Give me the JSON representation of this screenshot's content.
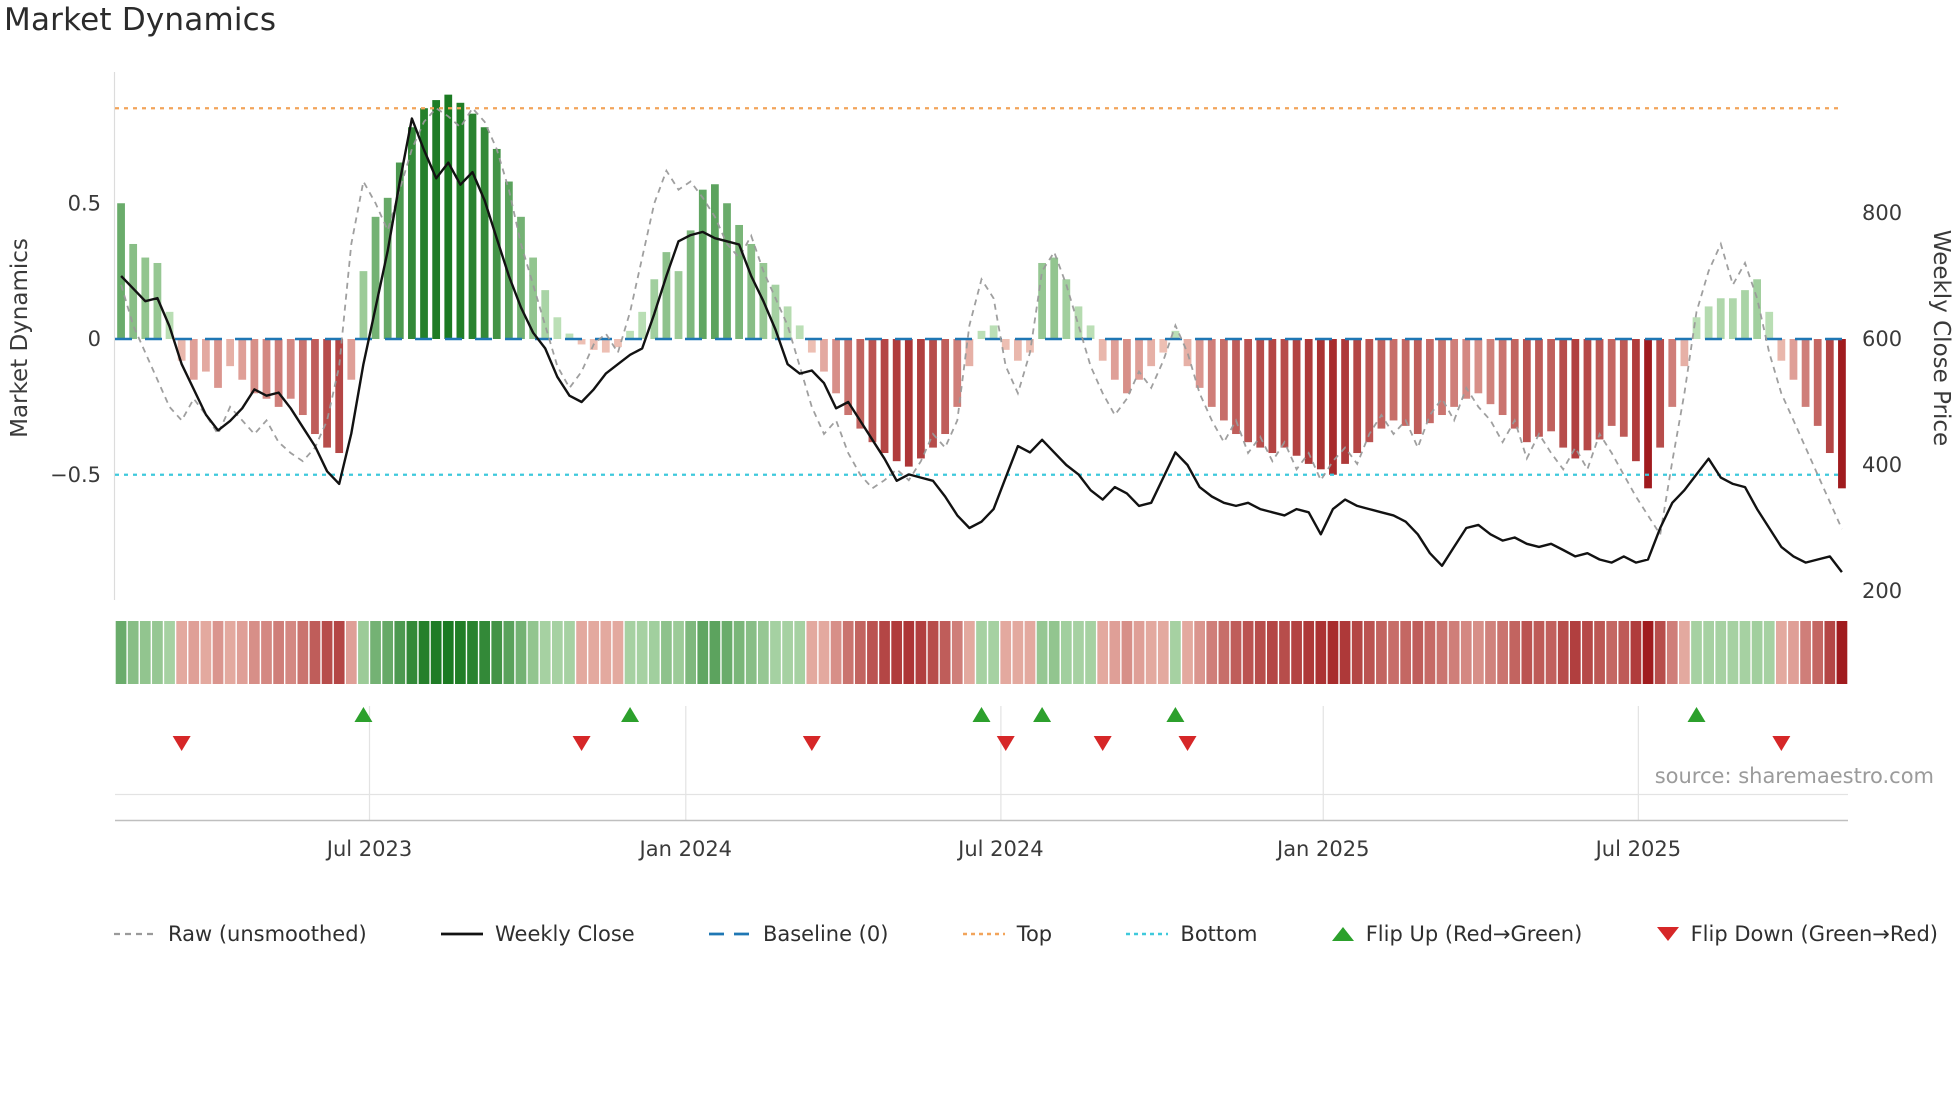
{
  "title": "Market Dynamics",
  "source": "source: sharemaestro.com",
  "axes": {
    "left_label": "Market Dynamics",
    "right_label": "Weekly Close Price",
    "left_ticks": [
      {
        "value": 0.5,
        "label": "0.5"
      },
      {
        "value": 0.0,
        "label": "0"
      },
      {
        "value": -0.5,
        "label": "−0.5"
      }
    ],
    "right_ticks": [
      {
        "value": 800,
        "label": "800"
      },
      {
        "value": 600,
        "label": "600"
      },
      {
        "value": 400,
        "label": "400"
      },
      {
        "value": 200,
        "label": "200"
      }
    ],
    "x_ticks": [
      {
        "week": 21.0,
        "label": "Jul 2023"
      },
      {
        "week": 47.1,
        "label": "Jan 2024"
      },
      {
        "week": 73.1,
        "label": "Jul 2024"
      },
      {
        "week": 99.7,
        "label": "Jan 2025"
      },
      {
        "week": 125.7,
        "label": "Jul 2025"
      }
    ]
  },
  "colors": {
    "raw": "#9a9a9a",
    "close": "#121212",
    "baseline": "#1f77b4",
    "top": "#f2a45a",
    "bottom": "#3fc9dc",
    "flip_up": "#2ca02c",
    "flip_down": "#d62728",
    "bar_pos_light": "#cdeac6",
    "bar_pos_dark": "#1b7a22",
    "bar_neg_light": "#f6d1c4",
    "bar_neg_dark": "#a01b1e",
    "grid": "#e3e3e3",
    "spine": "#bfbfbf",
    "tick_text": "#3a3a3a"
  },
  "legend": [
    {
      "label": "Raw (unsmoothed)",
      "style": "line-dash-small",
      "color_key": "raw"
    },
    {
      "label": "Weekly Close",
      "style": "line-solid",
      "color_key": "close"
    },
    {
      "label": "Baseline (0)",
      "style": "line-dash-long",
      "color_key": "baseline"
    },
    {
      "label": "Top",
      "style": "line-dot",
      "color_key": "top"
    },
    {
      "label": "Bottom",
      "style": "line-dot",
      "color_key": "bottom"
    },
    {
      "label": "Flip Up (Red→Green)",
      "style": "triangle-up",
      "color_key": "flip_up"
    },
    {
      "label": "Flip Down (Green→Red)",
      "style": "triangle-down",
      "color_key": "flip_down"
    }
  ],
  "chart_data": {
    "type": "bar",
    "title": "Market Dynamics",
    "x_unit": "weekly observations (index 0..142)",
    "n_points": 143,
    "left_axis": {
      "label": "Market Dynamics",
      "range": [
        -0.96,
        0.98
      ],
      "ticks": [
        0.5,
        0,
        -0.5
      ]
    },
    "right_axis": {
      "label": "Weekly Close Price",
      "ticks": [
        800,
        600,
        400,
        200
      ]
    },
    "reference_levels": {
      "baseline": 0,
      "top": 0.85,
      "bottom": -0.5
    },
    "grid": "off",
    "legend_position": "bottom",
    "series": [
      {
        "name": "Market Dynamics (smoothed bars)",
        "axis": "left",
        "render": "bar",
        "values": [
          0.5,
          0.35,
          0.3,
          0.28,
          0.1,
          -0.08,
          -0.15,
          -0.12,
          -0.18,
          -0.1,
          -0.15,
          -0.2,
          -0.22,
          -0.25,
          -0.22,
          -0.28,
          -0.35,
          -0.4,
          -0.42,
          -0.15,
          0.25,
          0.45,
          0.52,
          0.65,
          0.78,
          0.85,
          0.88,
          0.9,
          0.87,
          0.83,
          0.78,
          0.7,
          0.58,
          0.45,
          0.3,
          0.18,
          0.08,
          0.02,
          -0.02,
          -0.04,
          -0.05,
          -0.03,
          0.03,
          0.1,
          0.22,
          0.32,
          0.25,
          0.4,
          0.55,
          0.57,
          0.5,
          0.42,
          0.35,
          0.28,
          0.2,
          0.12,
          0.05,
          -0.05,
          -0.12,
          -0.2,
          -0.28,
          -0.33,
          -0.38,
          -0.42,
          -0.45,
          -0.47,
          -0.44,
          -0.4,
          -0.35,
          -0.25,
          -0.1,
          0.03,
          0.05,
          -0.04,
          -0.08,
          -0.05,
          0.28,
          0.3,
          0.22,
          0.12,
          0.05,
          -0.08,
          -0.15,
          -0.2,
          -0.15,
          -0.1,
          -0.05,
          0.03,
          -0.1,
          -0.18,
          -0.25,
          -0.3,
          -0.35,
          -0.38,
          -0.4,
          -0.42,
          -0.4,
          -0.43,
          -0.46,
          -0.48,
          -0.5,
          -0.46,
          -0.42,
          -0.38,
          -0.33,
          -0.3,
          -0.32,
          -0.35,
          -0.31,
          -0.28,
          -0.25,
          -0.22,
          -0.2,
          -0.24,
          -0.28,
          -0.33,
          -0.38,
          -0.36,
          -0.34,
          -0.4,
          -0.44,
          -0.41,
          -0.37,
          -0.32,
          -0.36,
          -0.45,
          -0.55,
          -0.4,
          -0.25,
          -0.1,
          0.08,
          0.12,
          0.15,
          0.15,
          0.18,
          0.22,
          0.1,
          -0.08,
          -0.15,
          -0.25,
          -0.32,
          -0.42,
          -0.55
        ]
      },
      {
        "name": "Raw (unsmoothed)",
        "axis": "left",
        "render": "dashed-line",
        "values": [
          0.2,
          0.05,
          -0.05,
          -0.15,
          -0.25,
          -0.3,
          -0.22,
          -0.28,
          -0.35,
          -0.25,
          -0.3,
          -0.35,
          -0.3,
          -0.38,
          -0.42,
          -0.45,
          -0.4,
          -0.3,
          -0.1,
          0.35,
          0.58,
          0.5,
          0.4,
          0.55,
          0.7,
          0.8,
          0.85,
          0.82,
          0.78,
          0.85,
          0.8,
          0.7,
          0.55,
          0.35,
          0.2,
          0.05,
          -0.1,
          -0.18,
          -0.12,
          -0.02,
          0.02,
          -0.05,
          0.1,
          0.3,
          0.5,
          0.62,
          0.55,
          0.58,
          0.52,
          0.45,
          0.35,
          0.3,
          0.38,
          0.25,
          0.15,
          0.05,
          -0.1,
          -0.25,
          -0.35,
          -0.3,
          -0.42,
          -0.5,
          -0.55,
          -0.52,
          -0.48,
          -0.52,
          -0.45,
          -0.35,
          -0.4,
          -0.3,
          0.05,
          0.22,
          0.15,
          -0.1,
          -0.2,
          -0.05,
          0.25,
          0.32,
          0.2,
          0.05,
          -0.1,
          -0.2,
          -0.28,
          -0.22,
          -0.12,
          -0.18,
          -0.08,
          0.05,
          -0.05,
          -0.2,
          -0.3,
          -0.38,
          -0.3,
          -0.42,
          -0.36,
          -0.45,
          -0.38,
          -0.48,
          -0.42,
          -0.52,
          -0.45,
          -0.4,
          -0.46,
          -0.35,
          -0.28,
          -0.35,
          -0.3,
          -0.4,
          -0.28,
          -0.22,
          -0.3,
          -0.18,
          -0.25,
          -0.3,
          -0.38,
          -0.3,
          -0.44,
          -0.35,
          -0.42,
          -0.48,
          -0.4,
          -0.48,
          -0.35,
          -0.42,
          -0.5,
          -0.58,
          -0.65,
          -0.72,
          -0.45,
          -0.2,
          0.1,
          0.25,
          0.35,
          0.2,
          0.28,
          0.15,
          -0.05,
          -0.2,
          -0.3,
          -0.4,
          -0.5,
          -0.6,
          -0.7
        ]
      },
      {
        "name": "Weekly Close",
        "axis": "right",
        "render": "solid-line",
        "values": [
          700,
          680,
          660,
          665,
          620,
          560,
          520,
          480,
          455,
          470,
          490,
          520,
          510,
          515,
          490,
          460,
          430,
          390,
          370,
          450,
          560,
          650,
          740,
          850,
          950,
          900,
          855,
          880,
          845,
          865,
          820,
          760,
          700,
          650,
          610,
          585,
          540,
          510,
          500,
          520,
          545,
          560,
          575,
          585,
          640,
          700,
          755,
          765,
          770,
          760,
          755,
          750,
          700,
          660,
          615,
          560,
          545,
          550,
          530,
          490,
          500,
          470,
          440,
          410,
          375,
          385,
          380,
          375,
          350,
          320,
          300,
          310,
          330,
          380,
          430,
          420,
          440,
          420,
          400,
          385,
          360,
          345,
          365,
          355,
          335,
          340,
          380,
          420,
          400,
          365,
          350,
          340,
          335,
          340,
          330,
          325,
          320,
          330,
          325,
          290,
          330,
          345,
          335,
          330,
          325,
          320,
          310,
          290,
          260,
          240,
          270,
          300,
          305,
          290,
          280,
          285,
          275,
          270,
          275,
          265,
          255,
          260,
          250,
          245,
          255,
          245,
          250,
          300,
          340,
          360,
          385,
          410,
          380,
          370,
          365,
          330,
          300,
          270,
          255,
          245,
          250,
          255,
          230
        ]
      }
    ],
    "heatmap": "same values as smoothed bars, rendered as color strip",
    "flip_up_weeks": [
      20,
      42,
      71,
      76,
      87,
      130
    ],
    "flip_down_weeks": [
      5,
      38,
      57,
      73,
      81,
      88,
      137
    ]
  }
}
